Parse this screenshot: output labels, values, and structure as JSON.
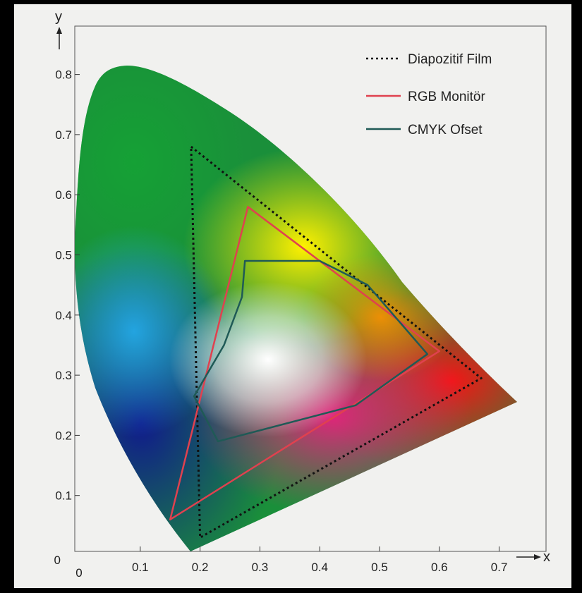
{
  "chart_data": {
    "type": "diagram",
    "xlabel": "x",
    "ylabel": "y",
    "xlim": [
      0,
      0.7
    ],
    "ylim": [
      0,
      0.8
    ],
    "x_ticks": [
      "0",
      "0.1",
      "0.2",
      "0.3",
      "0.4",
      "0.5",
      "0.6",
      "0.7"
    ],
    "y_ticks": [
      "0",
      "0.1",
      "0.2",
      "0.3",
      "0.4",
      "0.5",
      "0.6",
      "0.7",
      "0.8"
    ],
    "legend": [
      {
        "label": "Diapozitif Film",
        "style": "dotted",
        "color": "#111111"
      },
      {
        "label": "RGB Monitör",
        "style": "solid",
        "color": "#e0414f"
      },
      {
        "label": "CMYK Ofset",
        "style": "solid",
        "color": "#1f5a56"
      }
    ],
    "gamuts": {
      "diapozitif_film": [
        [
          0.185,
          0.68
        ],
        [
          0.67,
          0.295
        ],
        [
          0.2,
          0.03
        ]
      ],
      "rgb_monitor": [
        [
          0.28,
          0.58
        ],
        [
          0.6,
          0.34
        ],
        [
          0.15,
          0.06
        ]
      ],
      "cmyk_ofset": [
        [
          0.275,
          0.49
        ],
        [
          0.4,
          0.49
        ],
        [
          0.48,
          0.45
        ],
        [
          0.58,
          0.335
        ],
        [
          0.46,
          0.25
        ],
        [
          0.23,
          0.19
        ],
        [
          0.19,
          0.265
        ],
        [
          0.24,
          0.35
        ],
        [
          0.27,
          0.43
        ]
      ]
    }
  }
}
